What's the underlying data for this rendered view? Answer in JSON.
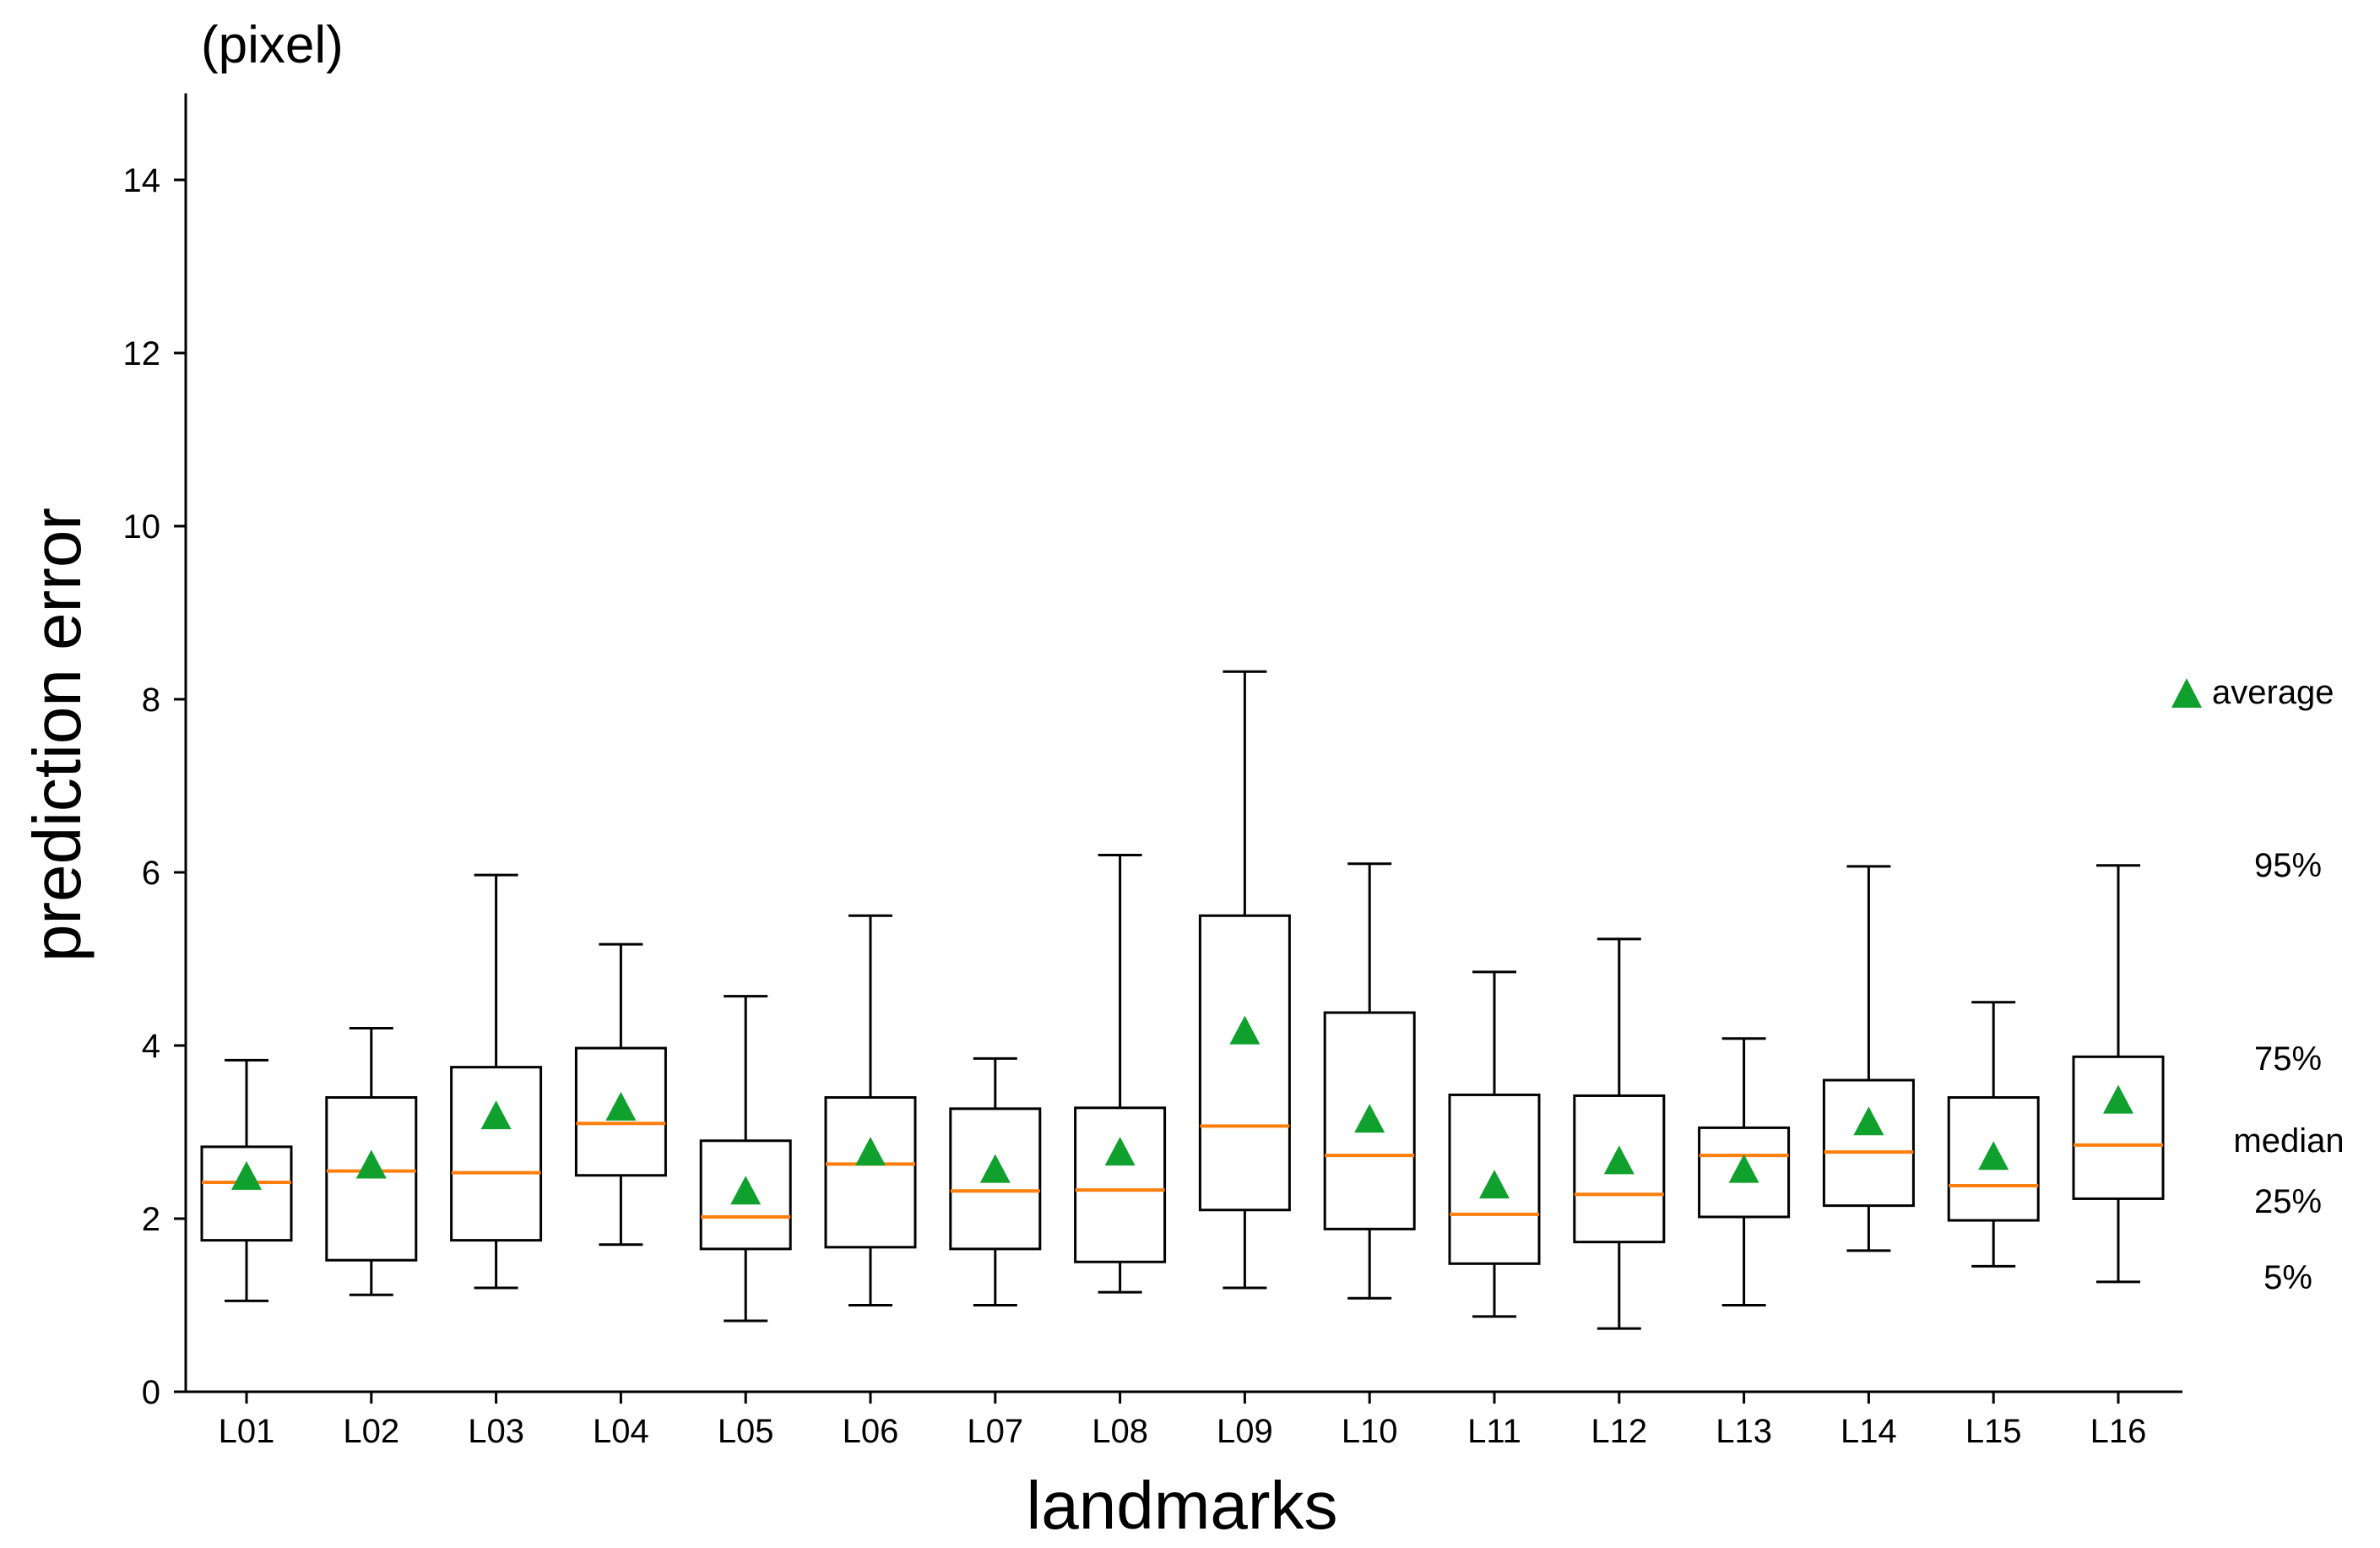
{
  "chart_data": {
    "type": "boxplot",
    "title": "",
    "unit_label": "(pixel)",
    "xlabel": "landmarks",
    "ylabel": "prediction error",
    "ylim": [
      0,
      15
    ],
    "yticks": [
      0,
      2,
      4,
      6,
      8,
      10,
      12,
      14
    ],
    "grid": false,
    "colors": {
      "box": "#000000",
      "median": "#ff7f0e",
      "mean": "#0fa02e"
    },
    "series": [
      {
        "name": "L01",
        "p5": 1.05,
        "p25": 1.75,
        "median": 2.42,
        "p75": 2.83,
        "p95": 3.83,
        "mean": 2.47
      },
      {
        "name": "L02",
        "p5": 1.12,
        "p25": 1.52,
        "median": 2.55,
        "p75": 3.4,
        "p95": 4.2,
        "mean": 2.6
      },
      {
        "name": "L03",
        "p5": 1.2,
        "p25": 1.75,
        "median": 2.53,
        "p75": 3.75,
        "p95": 5.97,
        "mean": 3.17
      },
      {
        "name": "L04",
        "p5": 1.7,
        "p25": 2.5,
        "median": 3.1,
        "p75": 3.97,
        "p95": 5.17,
        "mean": 3.27
      },
      {
        "name": "L05",
        "p5": 0.82,
        "p25": 1.65,
        "median": 2.02,
        "p75": 2.9,
        "p95": 4.57,
        "mean": 2.3
      },
      {
        "name": "L06",
        "p5": 1.0,
        "p25": 1.67,
        "median": 2.63,
        "p75": 3.4,
        "p95": 5.5,
        "mean": 2.75
      },
      {
        "name": "L07",
        "p5": 1.0,
        "p25": 1.65,
        "median": 2.32,
        "p75": 3.27,
        "p95": 3.85,
        "mean": 2.55
      },
      {
        "name": "L08",
        "p5": 1.15,
        "p25": 1.5,
        "median": 2.33,
        "p75": 3.28,
        "p95": 6.2,
        "mean": 2.75
      },
      {
        "name": "L09",
        "p5": 1.2,
        "p25": 2.1,
        "median": 3.07,
        "p75": 5.5,
        "p95": 8.32,
        "mean": 4.15
      },
      {
        "name": "L10",
        "p5": 1.08,
        "p25": 1.88,
        "median": 2.73,
        "p75": 4.38,
        "p95": 6.1,
        "mean": 3.13
      },
      {
        "name": "L11",
        "p5": 0.87,
        "p25": 1.48,
        "median": 2.05,
        "p75": 3.43,
        "p95": 4.85,
        "mean": 2.37
      },
      {
        "name": "L12",
        "p5": 0.73,
        "p25": 1.73,
        "median": 2.28,
        "p75": 3.42,
        "p95": 5.23,
        "mean": 2.65
      },
      {
        "name": "L13",
        "p5": 1.0,
        "p25": 2.02,
        "median": 2.73,
        "p75": 3.05,
        "p95": 4.08,
        "mean": 2.55
      },
      {
        "name": "L14",
        "p5": 1.63,
        "p25": 2.15,
        "median": 2.77,
        "p75": 3.6,
        "p95": 6.07,
        "mean": 3.1
      },
      {
        "name": "L15",
        "p5": 1.45,
        "p25": 1.98,
        "median": 2.38,
        "p75": 3.4,
        "p95": 4.5,
        "mean": 2.7
      },
      {
        "name": "L16",
        "p5": 1.27,
        "p25": 2.23,
        "median": 2.85,
        "p75": 3.87,
        "p95": 6.08,
        "mean": 3.35
      }
    ],
    "legend": {
      "average": "average",
      "p95": "95%",
      "p75": "75%",
      "median": "median",
      "p25": "25%",
      "p5": "5%"
    }
  }
}
